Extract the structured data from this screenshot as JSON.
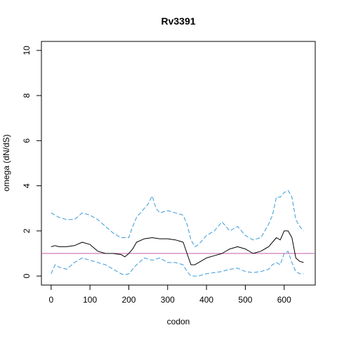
{
  "chart_data": {
    "type": "line",
    "title": "Rv3391",
    "xlabel": "codon",
    "ylabel": "omega (dN/dS)",
    "xlim": [
      -25,
      680
    ],
    "ylim": [
      -0.4,
      10.4
    ],
    "x_ticks": [
      0,
      100,
      200,
      300,
      400,
      500,
      600
    ],
    "y_ticks": [
      0,
      2,
      4,
      6,
      8,
      10
    ],
    "grid": false,
    "reference_line": {
      "y": 1,
      "color": "#c45ca2"
    },
    "series": [
      {
        "style": "solid",
        "color": "#000000",
        "x": [
          0,
          10,
          20,
          40,
          60,
          80,
          100,
          120,
          140,
          160,
          180,
          190,
          200,
          210,
          220,
          240,
          260,
          280,
          300,
          320,
          340,
          350,
          360,
          370,
          380,
          400,
          420,
          440,
          460,
          480,
          500,
          520,
          540,
          560,
          570,
          580,
          590,
          600,
          610,
          620,
          630,
          640,
          650
        ],
        "y": [
          1.3,
          1.35,
          1.3,
          1.3,
          1.35,
          1.5,
          1.4,
          1.1,
          1.0,
          1.0,
          0.95,
          0.85,
          1.0,
          1.2,
          1.5,
          1.65,
          1.7,
          1.65,
          1.65,
          1.6,
          1.5,
          1.0,
          0.5,
          0.5,
          0.6,
          0.8,
          0.9,
          1.0,
          1.2,
          1.3,
          1.2,
          1.0,
          1.1,
          1.3,
          1.5,
          1.7,
          1.6,
          2.0,
          2.0,
          1.7,
          0.8,
          0.65,
          0.6
        ]
      },
      {
        "style": "dashed",
        "color": "#3a9ad9",
        "x": [
          0,
          10,
          20,
          40,
          60,
          80,
          100,
          120,
          140,
          160,
          180,
          190,
          200,
          210,
          220,
          240,
          250,
          260,
          270,
          280,
          300,
          320,
          340,
          350,
          360,
          370,
          380,
          400,
          420,
          440,
          460,
          480,
          500,
          520,
          540,
          560,
          570,
          580,
          590,
          600,
          610,
          620,
          630,
          640,
          650
        ],
        "y": [
          2.8,
          2.7,
          2.6,
          2.5,
          2.5,
          2.8,
          2.7,
          2.5,
          2.2,
          1.9,
          1.7,
          1.7,
          1.7,
          2.2,
          2.6,
          3.0,
          3.2,
          3.55,
          3.0,
          2.8,
          2.9,
          2.8,
          2.7,
          2.3,
          1.6,
          1.3,
          1.4,
          1.8,
          2.0,
          2.4,
          2.0,
          2.2,
          1.8,
          1.6,
          1.7,
          2.3,
          2.7,
          3.5,
          3.5,
          3.7,
          3.8,
          3.5,
          2.5,
          2.2,
          2.0
        ]
      },
      {
        "style": "dashed",
        "color": "#3a9ad9",
        "x": [
          0,
          10,
          20,
          40,
          60,
          80,
          100,
          120,
          140,
          160,
          180,
          190,
          200,
          220,
          240,
          260,
          280,
          300,
          320,
          340,
          350,
          360,
          380,
          400,
          420,
          440,
          460,
          480,
          500,
          520,
          540,
          560,
          570,
          580,
          590,
          600,
          610,
          620,
          630,
          640,
          650
        ],
        "y": [
          0.1,
          0.5,
          0.4,
          0.3,
          0.6,
          0.8,
          0.7,
          0.6,
          0.5,
          0.3,
          0.1,
          0.05,
          0.1,
          0.5,
          0.8,
          0.7,
          0.8,
          0.6,
          0.6,
          0.5,
          0.2,
          0.0,
          0.0,
          0.1,
          0.15,
          0.2,
          0.3,
          0.35,
          0.2,
          0.15,
          0.2,
          0.3,
          0.5,
          0.6,
          0.5,
          1.0,
          1.1,
          0.6,
          0.2,
          0.1,
          0.1
        ]
      }
    ]
  }
}
